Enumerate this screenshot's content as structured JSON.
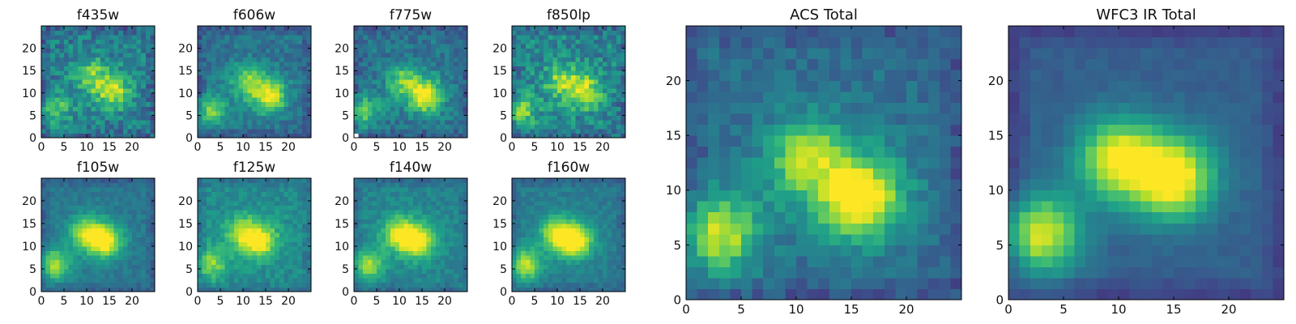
{
  "chart_data": [
    {
      "type": "heatmap",
      "title": "f435w",
      "xlabel": "",
      "ylabel": "",
      "xlim": [
        0,
        25
      ],
      "ylim": [
        0,
        25
      ],
      "x_ticks": [
        0,
        5,
        10,
        15,
        20
      ],
      "y_ticks": [
        0,
        5,
        10,
        15,
        20
      ],
      "x_tick_labels": [
        "0",
        "5",
        "10",
        "15",
        "20"
      ],
      "y_tick_labels": [
        "0",
        "5",
        "10",
        "15",
        "20"
      ],
      "colormap": "viridis",
      "grid": false,
      "pixels": [
        25,
        25
      ],
      "peaks": [
        {
          "x": 16,
          "y": 10,
          "level": 0.78
        },
        {
          "x": 3,
          "y": 6,
          "level": 0.72
        },
        {
          "x": 11,
          "y": 14,
          "level": 0.7
        }
      ],
      "background_level": 0.42,
      "noise": 0.3
    },
    {
      "type": "heatmap",
      "title": "f606w",
      "xlabel": "",
      "ylabel": "",
      "xlim": [
        0,
        25
      ],
      "ylim": [
        0,
        25
      ],
      "x_ticks": [
        0,
        5,
        10,
        15,
        20
      ],
      "y_ticks": [
        0,
        5,
        10,
        15,
        20
      ],
      "x_tick_labels": [
        "0",
        "5",
        "10",
        "15",
        "20"
      ],
      "y_tick_labels": [
        "0",
        "5",
        "10",
        "15",
        "20"
      ],
      "colormap": "viridis",
      "grid": false,
      "pixels": [
        25,
        25
      ],
      "peaks": [
        {
          "x": 16,
          "y": 9,
          "level": 0.85
        },
        {
          "x": 3,
          "y": 6,
          "level": 0.78
        },
        {
          "x": 11,
          "y": 13,
          "level": 0.72
        }
      ],
      "background_level": 0.38,
      "noise": 0.2
    },
    {
      "type": "heatmap",
      "title": "f775w",
      "xlabel": "",
      "ylabel": "",
      "xlim": [
        0,
        25
      ],
      "ylim": [
        0,
        25
      ],
      "x_ticks": [
        0,
        5,
        10,
        15,
        20
      ],
      "y_ticks": [
        0,
        5,
        10,
        15,
        20
      ],
      "x_tick_labels": [
        "0",
        "5",
        "10",
        "15",
        "20"
      ],
      "y_tick_labels": [
        "0",
        "5",
        "10",
        "15",
        "20"
      ],
      "colormap": "viridis",
      "grid": false,
      "pixels": [
        25,
        25
      ],
      "peaks": [
        {
          "x": 16,
          "y": 9,
          "level": 0.9
        },
        {
          "x": 2,
          "y": 6,
          "level": 0.8
        },
        {
          "x": 11,
          "y": 13,
          "level": 0.68
        }
      ],
      "background_level": 0.38,
      "noise": 0.22,
      "blank_corner": "bottom-left"
    },
    {
      "type": "heatmap",
      "title": "f850lp",
      "xlabel": "",
      "ylabel": "",
      "xlim": [
        0,
        25
      ],
      "ylim": [
        0,
        25
      ],
      "x_ticks": [
        0,
        5,
        10,
        15,
        20
      ],
      "y_ticks": [
        0,
        5,
        10,
        15,
        20
      ],
      "x_tick_labels": [
        "0",
        "5",
        "10",
        "15",
        "20"
      ],
      "y_tick_labels": [
        "0",
        "5",
        "10",
        "15",
        "20"
      ],
      "colormap": "viridis",
      "grid": false,
      "pixels": [
        25,
        25
      ],
      "peaks": [
        {
          "x": 16,
          "y": 10,
          "level": 0.82
        },
        {
          "x": 2,
          "y": 6,
          "level": 0.8
        },
        {
          "x": 11,
          "y": 13,
          "level": 0.72
        }
      ],
      "background_level": 0.45,
      "noise": 0.3,
      "blank_corner": "bottom-left"
    },
    {
      "type": "heatmap",
      "title": "f105w",
      "xlabel": "",
      "ylabel": "",
      "xlim": [
        0,
        25
      ],
      "ylim": [
        0,
        25
      ],
      "x_ticks": [
        0,
        5,
        10,
        15,
        20
      ],
      "y_ticks": [
        0,
        5,
        10,
        15,
        20
      ],
      "x_tick_labels": [
        "0",
        "5",
        "10",
        "15",
        "20"
      ],
      "y_tick_labels": [
        "0",
        "5",
        "10",
        "15",
        "20"
      ],
      "colormap": "viridis",
      "grid": false,
      "pixels": [
        25,
        25
      ],
      "peaks": [
        {
          "x": 14,
          "y": 11,
          "level": 0.9
        },
        {
          "x": 3,
          "y": 6,
          "level": 0.85
        },
        {
          "x": 10,
          "y": 13,
          "level": 0.78
        }
      ],
      "background_level": 0.4,
      "noise": 0.12
    },
    {
      "type": "heatmap",
      "title": "f125w",
      "xlabel": "",
      "ylabel": "",
      "xlim": [
        0,
        25
      ],
      "ylim": [
        0,
        25
      ],
      "x_ticks": [
        0,
        5,
        10,
        15,
        20
      ],
      "y_ticks": [
        0,
        5,
        10,
        15,
        20
      ],
      "x_tick_labels": [
        "0",
        "5",
        "10",
        "15",
        "20"
      ],
      "y_tick_labels": [
        "0",
        "5",
        "10",
        "15",
        "20"
      ],
      "colormap": "viridis",
      "grid": false,
      "pixels": [
        25,
        25
      ],
      "peaks": [
        {
          "x": 14,
          "y": 11,
          "level": 0.85
        },
        {
          "x": 3,
          "y": 6,
          "level": 0.82
        },
        {
          "x": 10,
          "y": 13,
          "level": 0.78
        }
      ],
      "background_level": 0.48,
      "noise": 0.16
    },
    {
      "type": "heatmap",
      "title": "f140w",
      "xlabel": "",
      "ylabel": "",
      "xlim": [
        0,
        25
      ],
      "ylim": [
        0,
        25
      ],
      "x_ticks": [
        0,
        5,
        10,
        15,
        20
      ],
      "y_ticks": [
        0,
        5,
        10,
        15,
        20
      ],
      "x_tick_labels": [
        "0",
        "5",
        "10",
        "15",
        "20"
      ],
      "y_tick_labels": [
        "0",
        "5",
        "10",
        "15",
        "20"
      ],
      "colormap": "viridis",
      "grid": false,
      "pixels": [
        25,
        25
      ],
      "peaks": [
        {
          "x": 14,
          "y": 11,
          "level": 0.95
        },
        {
          "x": 3,
          "y": 6,
          "level": 0.85
        },
        {
          "x": 10,
          "y": 13,
          "level": 0.82
        }
      ],
      "background_level": 0.45,
      "noise": 0.14
    },
    {
      "type": "heatmap",
      "title": "f160w",
      "xlabel": "",
      "ylabel": "",
      "xlim": [
        0,
        25
      ],
      "ylim": [
        0,
        25
      ],
      "x_ticks": [
        0,
        5,
        10,
        15,
        20
      ],
      "y_ticks": [
        0,
        5,
        10,
        15,
        20
      ],
      "x_tick_labels": [
        "0",
        "5",
        "10",
        "15",
        "20"
      ],
      "y_tick_labels": [
        "0",
        "5",
        "10",
        "15",
        "20"
      ],
      "colormap": "viridis",
      "grid": false,
      "pixels": [
        25,
        25
      ],
      "peaks": [
        {
          "x": 14,
          "y": 11,
          "level": 0.98
        },
        {
          "x": 3,
          "y": 6,
          "level": 0.9
        },
        {
          "x": 10,
          "y": 13,
          "level": 0.82
        }
      ],
      "background_level": 0.42,
      "noise": 0.12
    },
    {
      "type": "heatmap",
      "title": "ACS Total",
      "xlabel": "",
      "ylabel": "",
      "xlim": [
        0,
        25
      ],
      "ylim": [
        0,
        25
      ],
      "x_ticks": [
        0,
        5,
        10,
        15,
        20
      ],
      "y_ticks": [
        0,
        5,
        10,
        15,
        20
      ],
      "x_tick_labels": [
        "0",
        "5",
        "10",
        "15",
        "20"
      ],
      "y_tick_labels": [
        "0",
        "5",
        "10",
        "15",
        "20"
      ],
      "colormap": "viridis",
      "grid": false,
      "pixels": [
        25,
        25
      ],
      "peaks": [
        {
          "x": 16,
          "y": 9,
          "level": 0.98
        },
        {
          "x": 3,
          "y": 6,
          "level": 0.92
        },
        {
          "x": 11,
          "y": 13,
          "level": 0.78
        }
      ],
      "background_level": 0.36,
      "noise": 0.16
    },
    {
      "type": "heatmap",
      "title": "WFC3 IR Total",
      "xlabel": "",
      "ylabel": "",
      "xlim": [
        0,
        25
      ],
      "ylim": [
        0,
        25
      ],
      "x_ticks": [
        0,
        5,
        10,
        15,
        20
      ],
      "y_ticks": [
        0,
        5,
        10,
        15,
        20
      ],
      "x_tick_labels": [
        "0",
        "5",
        "10",
        "15",
        "20"
      ],
      "y_tick_labels": [
        "0",
        "5",
        "10",
        "15",
        "20"
      ],
      "colormap": "viridis",
      "grid": false,
      "pixels": [
        25,
        25
      ],
      "peaks": [
        {
          "x": 15,
          "y": 11,
          "level": 0.98
        },
        {
          "x": 3,
          "y": 6,
          "level": 0.95
        },
        {
          "x": 10,
          "y": 13,
          "level": 0.88
        }
      ],
      "background_level": 0.3,
      "noise": 0.06
    }
  ]
}
